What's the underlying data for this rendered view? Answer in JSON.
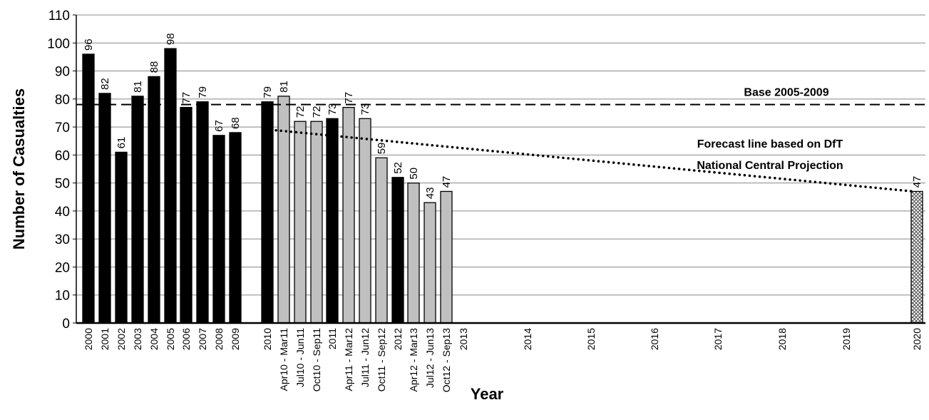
{
  "chart_data": {
    "type": "bar",
    "title": "",
    "xlabel": "Year",
    "ylabel": "Number of Casualties",
    "ylim": [
      0,
      110
    ],
    "yticks": [
      0,
      10,
      20,
      30,
      40,
      50,
      60,
      70,
      80,
      90,
      100,
      110
    ],
    "grid": "horizontal",
    "categories": [
      "2000",
      "2001",
      "2002",
      "2003",
      "2004",
      "2005",
      "2006",
      "2007",
      "2008",
      "2009",
      "2010",
      "Apr10 - Mar11",
      "Jul10 - Jun11",
      "Oct10 - Sep11",
      "2011",
      "Apr11 - Mar12",
      "Jul11 - Jun12",
      "Oct11 - Sep12",
      "2012",
      "Apr12 - Mar13",
      "Jul12 - Jun13",
      "Oct12 - Sep13",
      "2013",
      "2014",
      "2015",
      "2016",
      "2017",
      "2018",
      "2019",
      "2020"
    ],
    "values": [
      96,
      82,
      61,
      81,
      88,
      98,
      77,
      79,
      67,
      68,
      79,
      81,
      72,
      72,
      73,
      77,
      73,
      59,
      52,
      50,
      43,
      47,
      null,
      null,
      null,
      null,
      null,
      null,
      null,
      47
    ],
    "bar_styles": [
      "annual",
      "annual",
      "annual",
      "annual",
      "annual",
      "annual",
      "annual",
      "annual",
      "annual",
      "annual",
      "annual",
      "rolling",
      "rolling",
      "rolling",
      "annual",
      "rolling",
      "rolling",
      "rolling",
      "annual",
      "rolling",
      "rolling",
      "rolling",
      "annual",
      "annual",
      "annual",
      "annual",
      "annual",
      "annual",
      "annual",
      "target"
    ],
    "colors": {
      "annual": "#000000",
      "rolling": "#c0c0c0",
      "target_fill": "#ffffff",
      "target_hatch": "#555555",
      "grid": "#888888"
    },
    "reference_line": {
      "label": "Base 2005-2009",
      "value": 78,
      "style": "dashed"
    },
    "forecast_line": {
      "label_lines": [
        "Forecast line based on DfT",
        "National Central Projection"
      ],
      "style": "dotted",
      "from": {
        "category": "2010",
        "value": 69
      },
      "to": {
        "category": "2020",
        "value": 47
      }
    }
  }
}
